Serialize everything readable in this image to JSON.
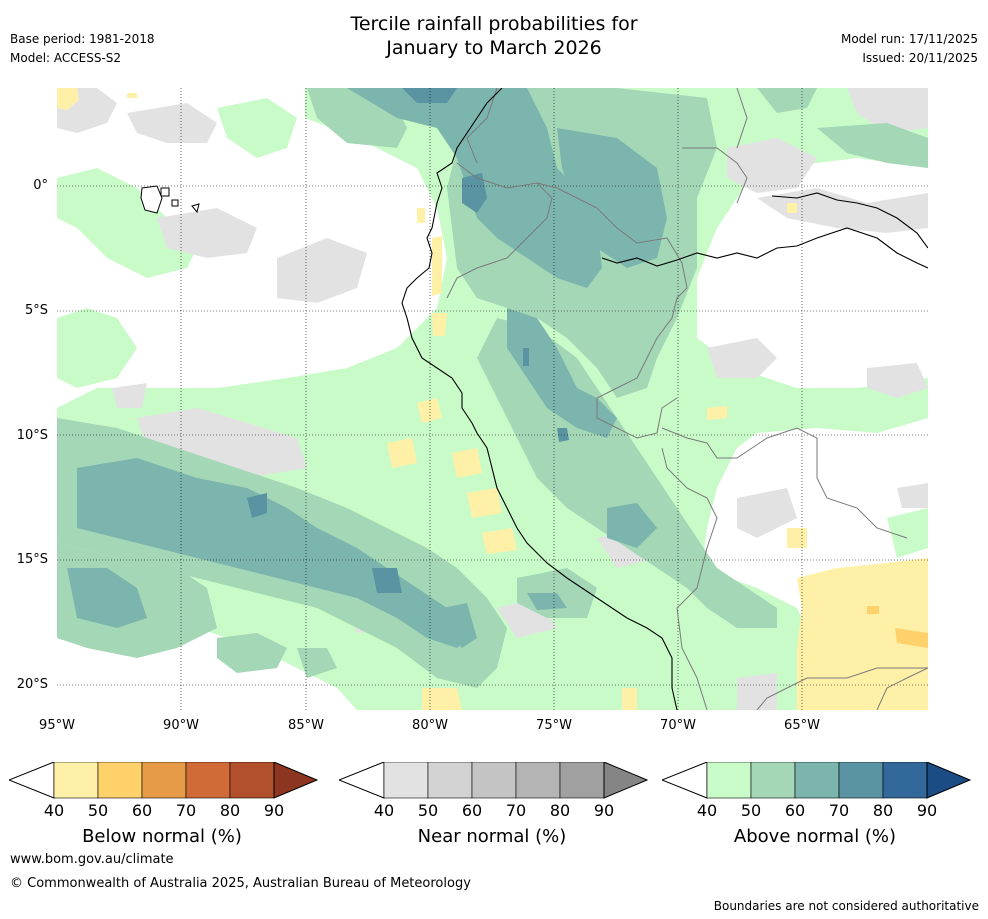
{
  "header": {
    "title_line1": "Tercile rainfall probabilities for",
    "title_line2": "January to March 2026",
    "base_period": "Base period: 1981-2018",
    "model": "Model: ACCESS-S2",
    "model_run": "Model run: 17/11/2025",
    "issued": "Issued: 20/11/2025"
  },
  "map": {
    "lat_labels": [
      "0°",
      "5°S",
      "10°S",
      "15°S",
      "20°S"
    ],
    "lon_labels": [
      "95°W",
      "90°W",
      "85°W",
      "80°W",
      "75°W",
      "70°W",
      "65°W"
    ],
    "colors": {
      "below": [
        "#fff0a8",
        "#fed16b",
        "#e59b48",
        "#d06a36",
        "#b2502b",
        "#8e3521"
      ],
      "near": [
        "#e2e2e2",
        "#d2d2d2",
        "#c4c4c4",
        "#b4b4b4",
        "#a0a0a0",
        "#858585"
      ],
      "above": [
        "#c9fbc9",
        "#a3d7b6",
        "#7cb5ad",
        "#5a93a1",
        "#33689b",
        "#1b4c84"
      ]
    }
  },
  "colorbars": [
    {
      "name": "below",
      "label": "Below normal (%)",
      "ticks": [
        "40",
        "50",
        "60",
        "70",
        "80",
        "90"
      ]
    },
    {
      "name": "near",
      "label": "Near normal (%)",
      "ticks": [
        "40",
        "50",
        "60",
        "70",
        "80",
        "90"
      ]
    },
    {
      "name": "above",
      "label": "Above normal (%)",
      "ticks": [
        "40",
        "50",
        "60",
        "70",
        "80",
        "90"
      ]
    }
  ],
  "footer": {
    "url": "www.bom.gov.au/climate",
    "copyright": "© Commonwealth of Australia 2025, Australian Bureau of Meteorology",
    "disclaimer": "Boundaries are not considered authoritative"
  }
}
